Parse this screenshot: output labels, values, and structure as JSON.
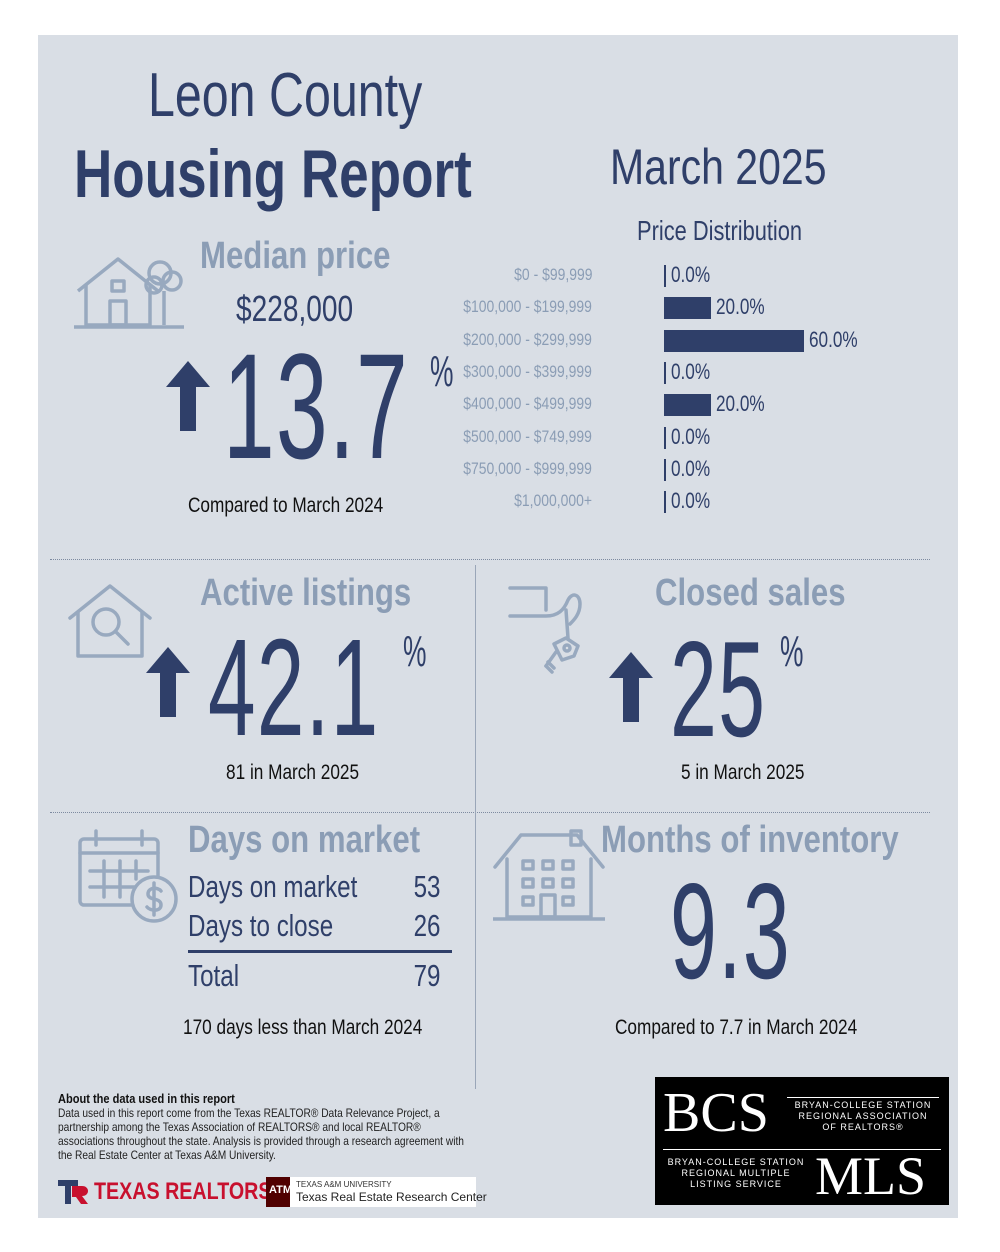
{
  "header": {
    "title_line1": "Leon County",
    "title_line2": "Housing Report",
    "month": "March 2025"
  },
  "median_price": {
    "label": "Median price",
    "price": "$228,000",
    "change": "13.7",
    "unit": "%",
    "direction": "up",
    "note": "Compared to March 2024"
  },
  "price_distribution": {
    "title": "Price Distribution",
    "rows": [
      {
        "range": "$0 - $99,999",
        "value": 0.0,
        "label": "0.0%"
      },
      {
        "range": "$100,000 - $199,999",
        "value": 20.0,
        "label": "20.0%"
      },
      {
        "range": "$200,000 - $299,999",
        "value": 60.0,
        "label": "60.0%"
      },
      {
        "range": "$300,000 - $399,999",
        "value": 0.0,
        "label": "0.0%"
      },
      {
        "range": "$400,000 - $499,999",
        "value": 20.0,
        "label": "20.0%"
      },
      {
        "range": "$500,000 - $749,999",
        "value": 0.0,
        "label": "0.0%"
      },
      {
        "range": "$750,000 - $999,999",
        "value": 0.0,
        "label": "0.0%"
      },
      {
        "range": "$1,000,000+",
        "value": 0.0,
        "label": "0.0%"
      }
    ]
  },
  "chart_data": {
    "type": "bar",
    "title": "Price Distribution",
    "categories": [
      "$0 - $99,999",
      "$100,000 - $199,999",
      "$200,000 - $299,999",
      "$300,000 - $399,999",
      "$400,000 - $499,999",
      "$500,000 - $749,999",
      "$750,000 - $999,999",
      "$1,000,000+"
    ],
    "values": [
      0.0,
      20.0,
      60.0,
      0.0,
      20.0,
      0.0,
      0.0,
      0.0
    ],
    "orientation": "horizontal",
    "xlim": [
      0,
      60
    ]
  },
  "active_listings": {
    "label": "Active listings",
    "change": "42.1",
    "unit": "%",
    "direction": "up",
    "note": "81 in March 2025"
  },
  "closed_sales": {
    "label": "Closed sales",
    "change": "25",
    "unit": "%",
    "direction": "up",
    "note": "5 in March 2025"
  },
  "days_on_market": {
    "label": "Days on market",
    "rows": [
      {
        "label": "Days on market",
        "value": "53"
      },
      {
        "label": "Days to close",
        "value": "26"
      }
    ],
    "total_label": "Total",
    "total_value": "79",
    "note": "170 days less than March 2024"
  },
  "months_inventory": {
    "label": "Months of inventory",
    "value": "9.3",
    "note": "Compared to 7.7 in March 2024"
  },
  "about": {
    "heading": "About the data used in this report",
    "text": "Data used in this report come from the Texas REALTOR® Data Relevance Project, a partnership among the Texas Association of REALTORS® and local REALTOR® associations throughout the state. Analysis is provided through a research agreement with the Real Estate Center at Texas A&M University."
  },
  "logos": {
    "texas_realtors": "TEXAS REALTORS",
    "tamu_small": "TEXAS A&M UNIVERSITY",
    "tamu_center": "Texas Real Estate Research Center",
    "bcs": "BCS",
    "bcs_assoc_l1": "BRYAN-COLLEGE STATION",
    "bcs_assoc_l2": "REGIONAL ASSOCIATION",
    "bcs_assoc_l3": "OF REALTORS®",
    "mls_l1": "BRYAN-COLLEGE STATION",
    "mls_l2": "REGIONAL MULTIPLE",
    "mls_l3": "LISTING SERVICE",
    "mls": "MLS"
  },
  "colors": {
    "navy": "#2f3f69",
    "muted": "#8b9db5",
    "panel": "#d9dee5",
    "icon": "#98a9bf"
  }
}
